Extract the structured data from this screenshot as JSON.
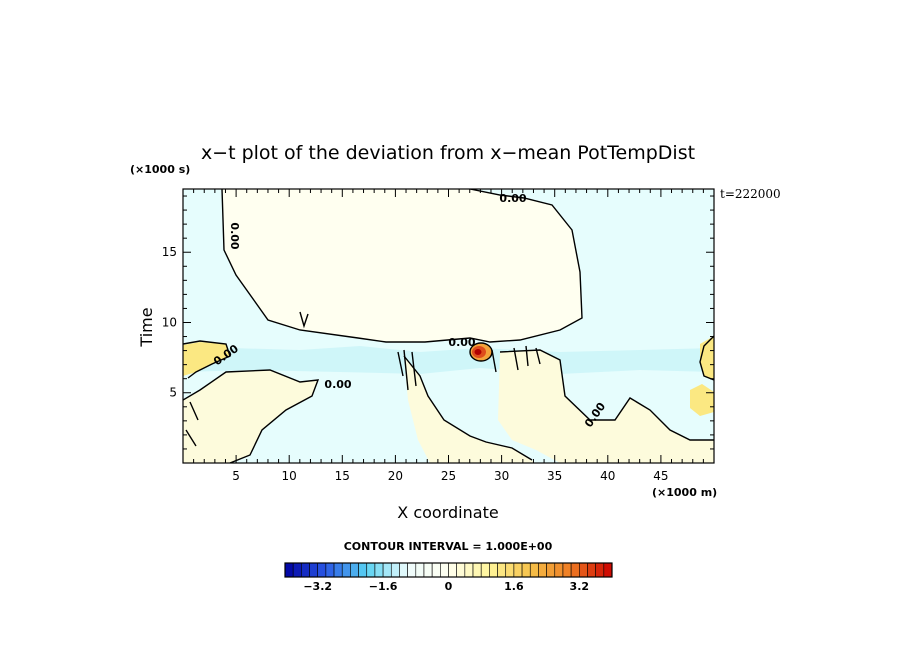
{
  "chart_data": {
    "type": "heatmap",
    "title": "x−t plot of the deviation from x−mean PotTempDist",
    "xlabel": "X coordinate",
    "ylabel": "Time",
    "x_unit": "(×1000 m)",
    "y_unit": "(×1000 s)",
    "time_stamp": "t=222000",
    "xlim": [
      0,
      50
    ],
    "ylim": [
      0,
      19.5
    ],
    "x_ticks": [
      "5",
      "10",
      "15",
      "20",
      "25",
      "30",
      "35",
      "40",
      "45"
    ],
    "x_tick_values": [
      5,
      10,
      15,
      20,
      25,
      30,
      35,
      40,
      45
    ],
    "y_ticks": [
      "5",
      "10",
      "15"
    ],
    "y_tick_values": [
      5,
      10,
      15
    ],
    "contour_labels": [
      "0.00",
      "0.00",
      "0.00",
      "0.00",
      "0.00",
      "0.00"
    ],
    "contour_interval_text": "CONTOUR INTERVAL = 1.000E+00",
    "colorbar": {
      "range": [
        -4,
        4
      ],
      "step": 0.2,
      "tick_labels": [
        "−3.2",
        "−1.6",
        "0",
        "1.6",
        "3.2"
      ],
      "tick_values": [
        -3.2,
        -1.6,
        0,
        1.6,
        3.2
      ],
      "colors": [
        "#0000a0",
        "#2a58e6",
        "#59d2f2",
        "#eefcfc",
        "#fffff0",
        "#fff59a",
        "#f6c24a",
        "#ee7a22",
        "#cc0000"
      ]
    },
    "grid": false,
    "regions": [
      {
        "name": "upper warm region (near 0)",
        "x_range": [
          4,
          38
        ],
        "t_range": [
          8.5,
          19.5
        ],
        "value": 0.05
      },
      {
        "name": "cool band near surface",
        "x_range": [
          0,
          50
        ],
        "t_range": [
          6.5,
          8.5
        ],
        "value": -0.6
      },
      {
        "name": "warm core anomaly",
        "x": 28,
        "t": 7.9,
        "value": 3.5
      }
    ]
  }
}
